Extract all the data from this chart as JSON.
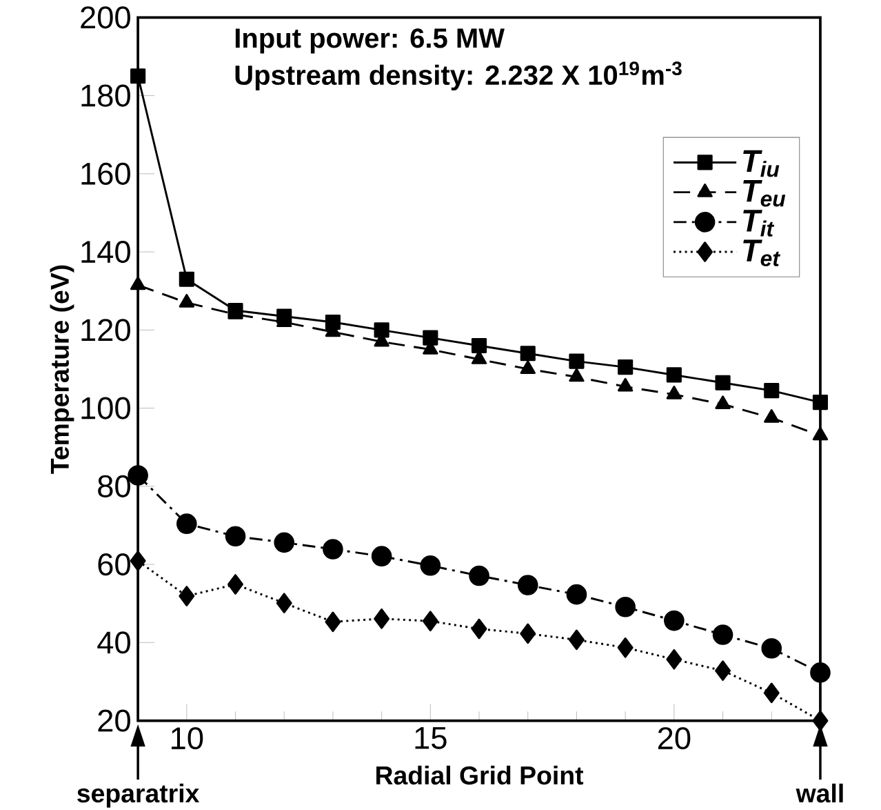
{
  "chart_data": {
    "type": "line",
    "xlabel": "Radial Grid Point",
    "ylabel": "Temperature (eV)",
    "xlim": [
      9,
      23
    ],
    "ylim": [
      20,
      200
    ],
    "xticks": [
      {
        "value": 9,
        "label": null
      },
      10,
      {
        "value": 11,
        "label": null
      },
      {
        "value": 12,
        "label": null
      },
      {
        "value": 13,
        "label": null
      },
      {
        "value": 14,
        "label": null
      },
      15,
      {
        "value": 16,
        "label": null
      },
      {
        "value": 17,
        "label": null
      },
      {
        "value": 18,
        "label": null
      },
      {
        "value": 19,
        "label": null
      },
      20,
      {
        "value": 21,
        "label": null
      },
      {
        "value": 22,
        "label": null
      },
      {
        "value": 23,
        "label": null
      }
    ],
    "yticks": [
      20,
      40,
      60,
      80,
      100,
      120,
      140,
      160,
      180,
      200
    ],
    "x": [
      9,
      10,
      11,
      12,
      13,
      14,
      15,
      16,
      17,
      18,
      19,
      20,
      21,
      22,
      23
    ],
    "series": [
      {
        "name": "T$_{iu}$",
        "color": "#000000",
        "marker": "square",
        "line_style": "solid",
        "values": [
          185,
          133,
          125,
          123.5,
          122,
          120,
          118,
          116,
          114,
          112,
          110.5,
          108.5,
          106.5,
          104.5,
          101.5
        ]
      },
      {
        "name": "T$_{eu}$",
        "color": "#000000",
        "marker": "triangle",
        "line_style": "dashed",
        "values": [
          131.5,
          127,
          124,
          122,
          119.5,
          117,
          115,
          112.5,
          110,
          108,
          105.5,
          103.5,
          101,
          97.5,
          93
        ]
      },
      {
        "name": "T$_{it}$",
        "color": "#000000",
        "marker": "circle",
        "line_style": "dashdot",
        "values": [
          82.8,
          70.4,
          67.2,
          65.6,
          63.9,
          62.1,
          59.7,
          57.1,
          54.7,
          52.3,
          49.1,
          45.6,
          42,
          38.5,
          32.3
        ]
      },
      {
        "name": "T$_{et}$",
        "color": "#000000",
        "marker": "diamond",
        "line_style": "dotted",
        "values": [
          60.9,
          51.9,
          54.9,
          50.1,
          45.3,
          46.1,
          45.5,
          43.5,
          42.3,
          40.7,
          38.7,
          35.7,
          32.8,
          27.1,
          20
        ]
      }
    ],
    "legend": "top right",
    "grid": false,
    "annotations": [
      "Input power: 6.5 MW",
      "Upstream density: 2.232 X 10$^{19}$m$^{-3}$",
      "separatrix",
      "wall"
    ]
  }
}
